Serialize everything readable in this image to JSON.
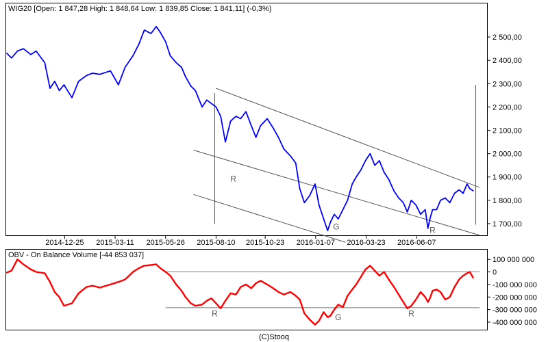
{
  "price_panel": {
    "header": "WIG20 [Open: 1 847,28  High: 1 848,64  Low: 1 839,85  Close: 1 841,11]  (-0,3%)"
  },
  "obv_panel": {
    "header": "OBV - On Balance Volume [-44 853 037]"
  },
  "footer": {
    "credit": "(C)Stooq"
  },
  "chart_data": [
    {
      "type": "line",
      "series": [
        {
          "name": "WIG20",
          "color": "#0000ff",
          "points": [
            [
              "2014-09-29",
              2430
            ],
            [
              "2014-10-06",
              2410
            ],
            [
              "2014-10-15",
              2440
            ],
            [
              "2014-10-24",
              2450
            ],
            [
              "2014-11-04",
              2425
            ],
            [
              "2014-11-12",
              2440
            ],
            [
              "2014-11-25",
              2390
            ],
            [
              "2014-12-03",
              2280
            ],
            [
              "2014-12-10",
              2310
            ],
            [
              "2014-12-17",
              2270
            ],
            [
              "2014-12-24",
              2295
            ],
            [
              "2015-01-05",
              2240
            ],
            [
              "2015-01-15",
              2310
            ],
            [
              "2015-01-27",
              2335
            ],
            [
              "2015-02-05",
              2345
            ],
            [
              "2015-02-16",
              2340
            ],
            [
              "2015-03-04",
              2355
            ],
            [
              "2015-03-16",
              2295
            ],
            [
              "2015-03-26",
              2370
            ],
            [
              "2015-04-07",
              2420
            ],
            [
              "2015-04-16",
              2470
            ],
            [
              "2015-04-24",
              2530
            ],
            [
              "2015-05-04",
              2515
            ],
            [
              "2015-05-12",
              2545
            ],
            [
              "2015-05-18",
              2520
            ],
            [
              "2015-05-26",
              2480
            ],
            [
              "2015-06-02",
              2420
            ],
            [
              "2015-06-11",
              2390
            ],
            [
              "2015-06-19",
              2370
            ],
            [
              "2015-06-25",
              2330
            ],
            [
              "2015-07-03",
              2290
            ],
            [
              "2015-07-10",
              2270
            ],
            [
              "2015-07-20",
              2200
            ],
            [
              "2015-07-27",
              2230
            ],
            [
              "2015-08-03",
              2215
            ],
            [
              "2015-08-10",
              2200
            ],
            [
              "2015-08-17",
              2160
            ],
            [
              "2015-08-24",
              2050
            ],
            [
              "2015-09-01",
              2140
            ],
            [
              "2015-09-09",
              2160
            ],
            [
              "2015-09-16",
              2150
            ],
            [
              "2015-09-24",
              2180
            ],
            [
              "2015-10-02",
              2120
            ],
            [
              "2015-10-09",
              2070
            ],
            [
              "2015-10-16",
              2120
            ],
            [
              "2015-10-26",
              2150
            ],
            [
              "2015-11-04",
              2110
            ],
            [
              "2015-11-12",
              2070
            ],
            [
              "2015-11-20",
              2020
            ],
            [
              "2015-11-30",
              1990
            ],
            [
              "2015-12-08",
              1960
            ],
            [
              "2015-12-14",
              1850
            ],
            [
              "2015-12-21",
              1790
            ],
            [
              "2015-12-29",
              1820
            ],
            [
              "2016-01-06",
              1870
            ],
            [
              "2016-01-12",
              1780
            ],
            [
              "2016-01-19",
              1720
            ],
            [
              "2016-01-25",
              1670
            ],
            [
              "2016-01-29",
              1705
            ],
            [
              "2016-02-04",
              1740
            ],
            [
              "2016-02-10",
              1720
            ],
            [
              "2016-02-17",
              1760
            ],
            [
              "2016-02-24",
              1800
            ],
            [
              "2016-03-02",
              1870
            ],
            [
              "2016-03-08",
              1900
            ],
            [
              "2016-03-15",
              1930
            ],
            [
              "2016-03-22",
              1970
            ],
            [
              "2016-03-29",
              2000
            ],
            [
              "2016-04-05",
              1950
            ],
            [
              "2016-04-12",
              1970
            ],
            [
              "2016-04-19",
              1920
            ],
            [
              "2016-04-26",
              1890
            ],
            [
              "2016-05-04",
              1840
            ],
            [
              "2016-05-11",
              1810
            ],
            [
              "2016-05-18",
              1790
            ],
            [
              "2016-05-24",
              1750
            ],
            [
              "2016-05-30",
              1800
            ],
            [
              "2016-06-06",
              1780
            ],
            [
              "2016-06-13",
              1740
            ],
            [
              "2016-06-20",
              1760
            ],
            [
              "2016-06-24",
              1680
            ],
            [
              "2016-06-27",
              1720
            ],
            [
              "2016-07-01",
              1760
            ],
            [
              "2016-07-07",
              1760
            ],
            [
              "2016-07-13",
              1800
            ],
            [
              "2016-07-20",
              1810
            ],
            [
              "2016-07-27",
              1790
            ],
            [
              "2016-08-03",
              1830
            ],
            [
              "2016-08-10",
              1845
            ],
            [
              "2016-08-16",
              1830
            ],
            [
              "2016-08-22",
              1870
            ],
            [
              "2016-08-26",
              1850
            ],
            [
              "2016-08-31",
              1841
            ]
          ]
        }
      ],
      "x_axis": {
        "type": "date",
        "range": [
          "2014-09-29",
          "2016-09-20"
        ],
        "tick_labels": [
          "2014-12-25",
          "2015-03-11",
          "2015-05-26",
          "2015-08-10",
          "2015-10-23",
          "2016-01-07",
          "2016-03-23",
          "2016-06-07"
        ]
      },
      "y_axis": {
        "position": "right",
        "ylim": [
          1650,
          2600
        ],
        "ticks": [
          1700,
          1800,
          1900,
          2000,
          2100,
          2200,
          2300,
          2400,
          2500
        ],
        "tick_labels": [
          "1 700,00",
          "1 800,00",
          "1 900,00",
          "2 000,00",
          "2 100,00",
          "2 200,00",
          "2 300,00",
          "2 400,00",
          "2 500,00"
        ]
      },
      "grid": false,
      "annotations": [
        {
          "type": "trendline",
          "from": [
            "2015-08-10",
            2280
          ],
          "to": [
            "2016-09-10",
            1855
          ]
        },
        {
          "type": "trendline",
          "from": [
            "2015-07-07",
            2015
          ],
          "to": [
            "2016-09-10",
            1650
          ]
        },
        {
          "type": "trendline",
          "from": [
            "2015-07-07",
            1825
          ],
          "to": [
            "2016-02-21",
            1620
          ]
        },
        {
          "type": "vertical_segment",
          "x": "2015-08-08",
          "y": [
            1700,
            2260
          ]
        },
        {
          "type": "vertical_segment",
          "x": "2016-09-04",
          "y": [
            1695,
            2295
          ]
        },
        {
          "type": "text",
          "text": "R",
          "x": "2015-09-05",
          "y": 1880
        },
        {
          "type": "text",
          "text": "G",
          "x": "2016-02-07",
          "y": 1675
        },
        {
          "type": "text",
          "text": "R",
          "x": "2016-07-01",
          "y": 1660
        }
      ]
    },
    {
      "type": "line",
      "series": [
        {
          "name": "OBV",
          "color": "#ff0000",
          "points": [
            [
              "2014-09-29",
              -5000000
            ],
            [
              "2014-10-06",
              10000000
            ],
            [
              "2014-10-15",
              100000000
            ],
            [
              "2014-10-24",
              60000000
            ],
            [
              "2014-11-04",
              20000000
            ],
            [
              "2014-11-12",
              0
            ],
            [
              "2014-11-25",
              -10000000
            ],
            [
              "2014-12-03",
              -80000000
            ],
            [
              "2014-12-10",
              -160000000
            ],
            [
              "2014-12-17",
              -200000000
            ],
            [
              "2014-12-24",
              -270000000
            ],
            [
              "2015-01-05",
              -250000000
            ],
            [
              "2015-01-15",
              -170000000
            ],
            [
              "2015-01-27",
              -120000000
            ],
            [
              "2015-02-05",
              -110000000
            ],
            [
              "2015-02-16",
              -125000000
            ],
            [
              "2015-03-04",
              -100000000
            ],
            [
              "2015-03-16",
              -80000000
            ],
            [
              "2015-03-26",
              -60000000
            ],
            [
              "2015-04-07",
              0
            ],
            [
              "2015-04-16",
              30000000
            ],
            [
              "2015-04-24",
              50000000
            ],
            [
              "2015-05-04",
              55000000
            ],
            [
              "2015-05-12",
              60000000
            ],
            [
              "2015-05-18",
              30000000
            ],
            [
              "2015-05-26",
              0
            ],
            [
              "2015-06-02",
              -30000000
            ],
            [
              "2015-06-11",
              -100000000
            ],
            [
              "2015-06-19",
              -150000000
            ],
            [
              "2015-06-25",
              -200000000
            ],
            [
              "2015-07-03",
              -250000000
            ],
            [
              "2015-07-10",
              -270000000
            ],
            [
              "2015-07-20",
              -260000000
            ],
            [
              "2015-07-27",
              -230000000
            ],
            [
              "2015-08-03",
              -210000000
            ],
            [
              "2015-08-10",
              -250000000
            ],
            [
              "2015-08-17",
              -290000000
            ],
            [
              "2015-08-24",
              -230000000
            ],
            [
              "2015-09-01",
              -170000000
            ],
            [
              "2015-09-09",
              -180000000
            ],
            [
              "2015-09-16",
              -120000000
            ],
            [
              "2015-09-24",
              -100000000
            ],
            [
              "2015-10-02",
              -130000000
            ],
            [
              "2015-10-09",
              -90000000
            ],
            [
              "2015-10-16",
              -70000000
            ],
            [
              "2015-10-26",
              -100000000
            ],
            [
              "2015-11-04",
              -130000000
            ],
            [
              "2015-11-12",
              -160000000
            ],
            [
              "2015-11-20",
              -180000000
            ],
            [
              "2015-11-30",
              -160000000
            ],
            [
              "2015-12-08",
              -190000000
            ],
            [
              "2015-12-14",
              -220000000
            ],
            [
              "2015-12-21",
              -330000000
            ],
            [
              "2015-12-29",
              -380000000
            ],
            [
              "2016-01-06",
              -420000000
            ],
            [
              "2016-01-12",
              -390000000
            ],
            [
              "2016-01-19",
              -320000000
            ],
            [
              "2016-01-25",
              -360000000
            ],
            [
              "2016-01-29",
              -350000000
            ],
            [
              "2016-02-04",
              -300000000
            ],
            [
              "2016-02-10",
              -260000000
            ],
            [
              "2016-02-17",
              -280000000
            ],
            [
              "2016-02-24",
              -190000000
            ],
            [
              "2016-03-02",
              -140000000
            ],
            [
              "2016-03-08",
              -100000000
            ],
            [
              "2016-03-15",
              -40000000
            ],
            [
              "2016-03-22",
              20000000
            ],
            [
              "2016-03-29",
              50000000
            ],
            [
              "2016-04-05",
              10000000
            ],
            [
              "2016-04-12",
              -30000000
            ],
            [
              "2016-04-19",
              0
            ],
            [
              "2016-04-26",
              -60000000
            ],
            [
              "2016-05-04",
              -120000000
            ],
            [
              "2016-05-11",
              -180000000
            ],
            [
              "2016-05-18",
              -240000000
            ],
            [
              "2016-05-24",
              -290000000
            ],
            [
              "2016-05-30",
              -270000000
            ],
            [
              "2016-06-06",
              -220000000
            ],
            [
              "2016-06-13",
              -160000000
            ],
            [
              "2016-06-20",
              -200000000
            ],
            [
              "2016-06-24",
              -240000000
            ],
            [
              "2016-06-27",
              -210000000
            ],
            [
              "2016-07-01",
              -150000000
            ],
            [
              "2016-07-07",
              -140000000
            ],
            [
              "2016-07-13",
              -160000000
            ],
            [
              "2016-07-20",
              -220000000
            ],
            [
              "2016-07-27",
              -200000000
            ],
            [
              "2016-08-03",
              -120000000
            ],
            [
              "2016-08-10",
              -60000000
            ],
            [
              "2016-08-16",
              -30000000
            ],
            [
              "2016-08-22",
              -10000000
            ],
            [
              "2016-08-26",
              0
            ],
            [
              "2016-08-31",
              -44853037
            ]
          ]
        }
      ],
      "x_axis": {
        "type": "date",
        "range": [
          "2014-09-29",
          "2016-09-20"
        ]
      },
      "y_axis": {
        "position": "right",
        "ylim": [
          -460000000,
          150000000
        ],
        "ticks": [
          100000000,
          0,
          -100000000,
          -200000000,
          -300000000,
          -400000000
        ],
        "tick_labels": [
          "100 000 000",
          "0",
          "-100 000 000",
          "-200 000 000",
          "-300 000 000",
          "-400 000 000"
        ]
      },
      "grid": false,
      "annotations": [
        {
          "type": "hline",
          "y": 0,
          "from": "2015-05-26",
          "to": "2016-09-10"
        },
        {
          "type": "hline",
          "y": -285000000,
          "from": "2015-05-26",
          "to": "2016-09-10"
        },
        {
          "type": "text",
          "text": "R",
          "x": "2015-08-08",
          "y": -355000000
        },
        {
          "type": "text",
          "text": "G",
          "x": "2016-02-10",
          "y": -385000000
        },
        {
          "type": "text",
          "text": "R",
          "x": "2016-05-30",
          "y": -355000000
        }
      ]
    }
  ]
}
